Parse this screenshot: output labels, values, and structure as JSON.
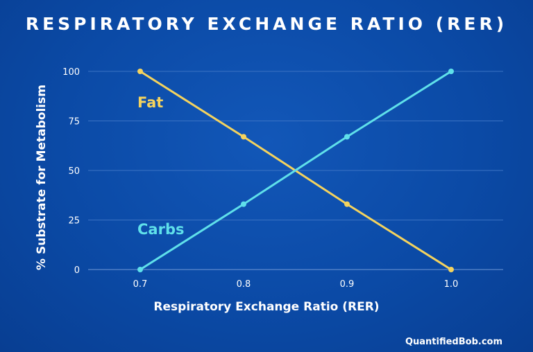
{
  "header": {
    "title": "RESPIRATORY EXCHANGE RATIO (RER)"
  },
  "footer": {
    "credit": "QuantifiedBob.com"
  },
  "colors": {
    "fat": "#f4d35e",
    "carbs": "#5fe0ea",
    "grid": "#3b73c4",
    "axis": "#6f98d6"
  },
  "chart_data": {
    "type": "line",
    "title": "RESPIRATORY EXCHANGE RATIO (RER)",
    "xlabel": "Respiratory Exchange Ratio (RER)",
    "ylabel": "% Substrate for Metabolism",
    "x": [
      0.7,
      0.8,
      0.9,
      1.0
    ],
    "xtick_labels": [
      "0.7",
      "0.8",
      "0.9",
      "1.0"
    ],
    "yticks": [
      0,
      25,
      50,
      75,
      100
    ],
    "ylim": [
      0,
      100
    ],
    "grid": "horizontal",
    "series": [
      {
        "name": "Fat",
        "values": [
          100,
          67,
          33,
          0
        ]
      },
      {
        "name": "Carbs",
        "values": [
          0,
          33,
          67,
          100
        ]
      }
    ]
  }
}
